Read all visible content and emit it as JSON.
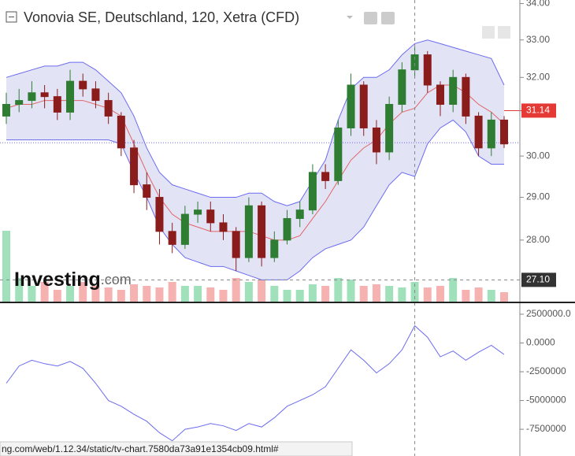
{
  "chart_data": [
    {
      "type": "candlestick",
      "title": "Vonovia SE, Deutschland, 120, Xetra (CFD)",
      "watermark": "Investing",
      "watermark_suffix": ".com",
      "log_scale": true,
      "ylim": [
        26.62,
        34.1
      ],
      "yticks": [
        {
          "value": 28,
          "label": "28.00"
        },
        {
          "value": 29,
          "label": "29.00"
        },
        {
          "value": 30,
          "label": "30.00"
        },
        {
          "value": 32,
          "label": "32.00"
        },
        {
          "value": 33,
          "label": "33.00"
        },
        {
          "value": 34,
          "label": "34.00"
        }
      ],
      "open": [
        31.0,
        31.3,
        31.4,
        31.6,
        31.5,
        31.1,
        31.9,
        31.7,
        31.4,
        31.0,
        30.2,
        29.3,
        29.0,
        28.2,
        27.9,
        28.6,
        28.7,
        28.4,
        28.2,
        27.6,
        28.8,
        27.6,
        28.0,
        28.5,
        28.7,
        29.6,
        29.4,
        30.7,
        31.8,
        30.7,
        30.1,
        31.3,
        32.2,
        32.6,
        31.8,
        31.3,
        32.0,
        31.0,
        30.2,
        30.9
      ],
      "high": [
        31.6,
        31.7,
        31.9,
        31.8,
        31.7,
        32.2,
        32.1,
        31.9,
        31.6,
        31.1,
        30.4,
        29.6,
        29.2,
        28.4,
        28.8,
        28.9,
        28.9,
        28.6,
        28.3,
        29.0,
        28.9,
        28.2,
        28.7,
        28.9,
        29.8,
        29.8,
        30.9,
        32.1,
        31.9,
        30.9,
        31.5,
        32.4,
        32.8,
        32.7,
        31.9,
        32.2,
        32.1,
        31.1,
        31.1,
        31.0
      ],
      "low": [
        30.8,
        31.1,
        31.2,
        31.2,
        30.9,
        30.9,
        31.5,
        31.2,
        30.8,
        30.0,
        29.1,
        28.7,
        27.9,
        27.7,
        27.8,
        28.4,
        28.2,
        28.0,
        27.3,
        27.5,
        27.4,
        27.5,
        27.9,
        28.3,
        28.6,
        29.2,
        29.3,
        30.5,
        30.5,
        29.8,
        29.9,
        31.1,
        32.0,
        31.6,
        31.0,
        31.1,
        30.8,
        30.0,
        30.0,
        30.2
      ],
      "close": [
        31.3,
        31.4,
        31.6,
        31.5,
        31.1,
        31.9,
        31.7,
        31.4,
        31.0,
        30.2,
        29.3,
        29.0,
        28.2,
        27.9,
        28.6,
        28.7,
        28.4,
        28.2,
        27.6,
        28.8,
        27.6,
        28.0,
        28.5,
        28.7,
        29.6,
        29.4,
        30.7,
        31.8,
        30.7,
        30.1,
        31.3,
        32.2,
        32.6,
        31.8,
        31.3,
        32.0,
        31.0,
        30.2,
        30.9,
        30.3
      ],
      "up_color": "#2e7d32",
      "down_color": "#8b1c1c",
      "bands": [
        {
          "color": "#6b6bf0",
          "values": [
            32.0,
            32.1,
            32.2,
            32.3,
            32.3,
            32.4,
            32.4,
            32.2,
            31.9,
            31.6,
            31.0,
            30.2,
            29.6,
            29.3,
            29.2,
            29.1,
            29.0,
            29.0,
            29.0,
            29.1,
            29.1,
            28.9,
            28.8,
            28.9,
            29.4,
            29.9,
            30.9,
            31.7,
            32.0,
            32.0,
            32.2,
            32.6,
            32.9,
            33.0,
            32.9,
            32.8,
            32.7,
            32.6,
            32.5,
            31.8
          ]
        },
        {
          "color": "#e06666",
          "values": [
            31.2,
            31.3,
            31.3,
            31.4,
            31.4,
            31.4,
            31.4,
            31.3,
            31.2,
            31.0,
            30.3,
            29.6,
            29.0,
            28.6,
            28.4,
            28.3,
            28.2,
            28.2,
            28.2,
            28.2,
            28.1,
            28.0,
            28.0,
            28.1,
            28.5,
            28.9,
            29.4,
            29.9,
            30.2,
            30.4,
            30.8,
            31.1,
            31.2,
            31.6,
            31.8,
            31.8,
            31.6,
            31.3,
            31.1,
            30.8
          ]
        },
        {
          "color": "#6b6bf0",
          "values": [
            30.4,
            30.4,
            30.4,
            30.4,
            30.4,
            30.4,
            30.4,
            30.4,
            30.4,
            30.3,
            29.6,
            29.0,
            28.3,
            27.9,
            27.6,
            27.5,
            27.4,
            27.4,
            27.3,
            27.2,
            27.1,
            27.1,
            27.1,
            27.3,
            27.6,
            27.8,
            27.9,
            28.0,
            28.3,
            28.8,
            29.3,
            29.6,
            29.5,
            30.3,
            30.7,
            30.9,
            30.6,
            30.0,
            29.8,
            29.8
          ]
        }
      ],
      "band_fill": "#dcdcf4",
      "volume": {
        "values": [
          90,
          30,
          20,
          25,
          15,
          20,
          25,
          20,
          18,
          15,
          22,
          20,
          18,
          25,
          20,
          20,
          18,
          15,
          30,
          25,
          28,
          20,
          15,
          15,
          22,
          20,
          30,
          28,
          20,
          22,
          20,
          18,
          25,
          18,
          20,
          30,
          15,
          18,
          15,
          12
        ],
        "ylim": [
          0,
          100
        ],
        "up_color": "#8fdcb0",
        "down_color": "#f4a3a3"
      },
      "last_price": {
        "value": 31.14,
        "label": "31.14",
        "color": "#e53935"
      },
      "price_line": 30.33,
      "crosshair_price": {
        "value": 27.1,
        "label": "27.10"
      },
      "crosshair_index": 32
    },
    {
      "type": "line",
      "color": "#6b6bf0",
      "values": [
        -3500000,
        -2000000,
        -1500000,
        -1800000,
        -2000000,
        -1600000,
        -2200000,
        -3500000,
        -5000000,
        -5500000,
        -6200000,
        -6800000,
        -7800000,
        -8500000,
        -7500000,
        -7300000,
        -7000000,
        -7200000,
        -7600000,
        -7000000,
        -7300000,
        -6500000,
        -5500000,
        -5000000,
        -4500000,
        -3800000,
        -2200000,
        -600000,
        -1500000,
        -2600000,
        -1800000,
        -600000,
        1500000,
        500000,
        -1200000,
        -700000,
        -1500000,
        -800000,
        -200000,
        -1000000
      ],
      "ylim": [
        -9822000,
        3388000
      ],
      "yticks": [
        {
          "value": 2500000,
          "label": "2500000.0"
        },
        {
          "value": 0,
          "label": "0.0000"
        },
        -2500000,
        -5000000,
        -7500000
      ]
    }
  ],
  "status_url": "ng.com/web/1.12.34/static/tv-chart.7580da73a91e1354cb09.html#"
}
